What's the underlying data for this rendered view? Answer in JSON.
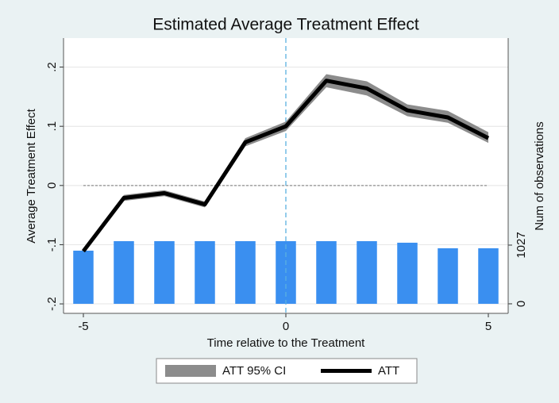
{
  "chart_data": {
    "type": "combo",
    "title": "Estimated Average Treatment Effect",
    "x_label": "Time relative to the Treatment",
    "y_label": "Average Treatment Effect",
    "y2_label": "Num of observations",
    "x": [
      -5,
      -4,
      -3,
      -2,
      -1,
      0,
      1,
      2,
      3,
      4,
      5
    ],
    "xlim": [
      -5.49,
      5.49
    ],
    "xticks": [
      -5,
      0,
      5
    ],
    "ylim": [
      -0.216,
      0.249
    ],
    "yticks": [
      {
        "value": 0.2,
        "label": ".2"
      },
      {
        "value": 0.1,
        "label": ".1"
      },
      0,
      {
        "value": -0.1,
        "label": "-.1"
      },
      {
        "value": -0.2,
        "label": "-.2"
      }
    ],
    "y2lim": [
      -167,
      4649
    ],
    "y2ticks": [
      0,
      1027
    ],
    "grid": true,
    "vline": 0,
    "hline": 0,
    "bars": {
      "axis": "y2",
      "color": "#3a8ff0",
      "values": [
        930,
        1096,
        1096,
        1096,
        1096,
        1096,
        1096,
        1096,
        1069,
        972,
        972
      ]
    },
    "series": [
      {
        "type": "band",
        "name": "ATT 95% CI",
        "color": "#8c8c8c",
        "lower": [
          -0.113,
          -0.026,
          -0.018,
          -0.037,
          0.066,
          0.092,
          0.166,
          0.152,
          0.117,
          0.106,
          0.072
        ],
        "upper": [
          -0.107,
          -0.016,
          -0.008,
          -0.027,
          0.08,
          0.108,
          0.188,
          0.176,
          0.137,
          0.126,
          0.09
        ]
      },
      {
        "type": "line",
        "name": "ATT",
        "color": "#000000",
        "values": [
          -0.111,
          -0.021,
          -0.013,
          -0.032,
          0.073,
          0.1,
          0.177,
          0.164,
          0.127,
          0.115,
          0.08
        ]
      }
    ]
  }
}
